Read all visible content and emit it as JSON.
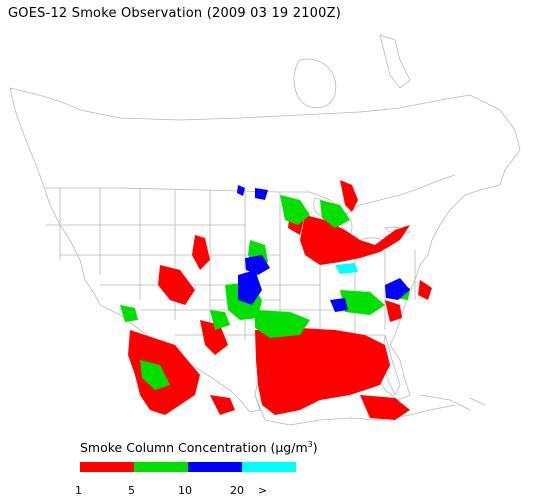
{
  "title": "GOES-12 Smoke Observation (2009 03 19  2100Z)",
  "legend": {
    "title_prefix": "Smoke Column Concentration (",
    "unit_greek": "μ",
    "unit_rest": "g/m",
    "unit_sup": "3",
    "title_suffix": ")",
    "classes": [
      {
        "range": "1-5",
        "color": "#ff0000"
      },
      {
        "range": "5-10",
        "color": "#00e000"
      },
      {
        "range": "10-20",
        "color": "#0000ff"
      },
      {
        "range": "20+",
        "color": "#00ffff"
      }
    ],
    "ticks": [
      "1",
      "5",
      "10",
      "20",
      ">"
    ]
  }
}
